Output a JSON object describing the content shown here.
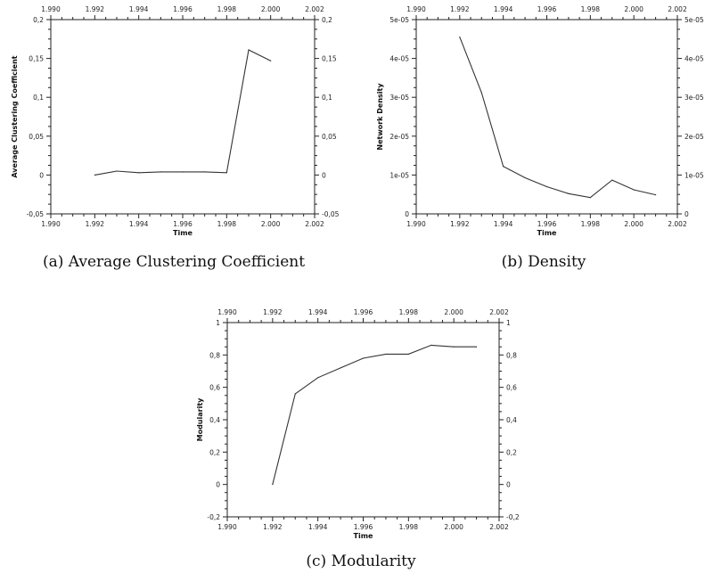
{
  "captions": {
    "a": "(a) Average Clustering Coefficient",
    "b": "(b) Density",
    "c": "(c) Modularity"
  },
  "chart_data": [
    {
      "type": "line",
      "panel": "a",
      "xlabel": "Time",
      "ylabel": "Average Clustering Coefficient",
      "xlim": [
        1.99,
        2.002
      ],
      "ylim": [
        -0.05,
        0.2
      ],
      "xticks": [
        "1.990",
        "1.992",
        "1.994",
        "1.996",
        "1.998",
        "2.000",
        "2.002"
      ],
      "yticks": [
        "-0,05",
        "0",
        "0,05",
        "0,1",
        "0,15",
        "0,2"
      ],
      "x": [
        1.992,
        1.993,
        1.994,
        1.995,
        1.996,
        1.997,
        1.998,
        1.999,
        2.0
      ],
      "y": [
        0.0,
        0.005,
        0.003,
        0.004,
        0.004,
        0.004,
        0.003,
        0.161,
        0.147
      ],
      "grid": false,
      "mirrored_axes": true,
      "line_color": "#333333"
    },
    {
      "type": "line",
      "panel": "b",
      "xlabel": "Time",
      "ylabel": "Network Density",
      "xlim": [
        1.99,
        2.002
      ],
      "ylim": [
        0,
        5e-05
      ],
      "xticks": [
        "1.990",
        "1.992",
        "1.994",
        "1.996",
        "1.998",
        "2.000",
        "2.002"
      ],
      "yticks": [
        "0",
        "1e-05",
        "2e-05",
        "3e-05",
        "4e-05",
        "5e-05"
      ],
      "x": [
        1.992,
        1.993,
        1.994,
        1.995,
        1.996,
        1.997,
        1.998,
        1.999,
        2.0,
        2.001
      ],
      "y": [
        4.55e-05,
        3.12e-05,
        1.22e-05,
        9.3e-06,
        7e-06,
        5.2e-06,
        4.2e-06,
        8.7e-06,
        6.2e-06,
        4.9e-06
      ],
      "grid": false,
      "mirrored_axes": true,
      "line_color": "#333333"
    },
    {
      "type": "line",
      "panel": "c",
      "xlabel": "Time",
      "ylabel": "Modularity",
      "xlim": [
        1.99,
        2.002
      ],
      "ylim": [
        -0.2,
        1
      ],
      "xticks": [
        "1.990",
        "1.992",
        "1.994",
        "1.996",
        "1.998",
        "2.000",
        "2.002"
      ],
      "yticks": [
        "-0,2",
        "0",
        "0,2",
        "0,4",
        "0,6",
        "0,8",
        "1"
      ],
      "x": [
        1.992,
        1.993,
        1.994,
        1.995,
        1.996,
        1.997,
        1.998,
        1.999,
        2.0,
        2.001
      ],
      "y": [
        0.0,
        0.56,
        0.66,
        0.72,
        0.78,
        0.805,
        0.805,
        0.86,
        0.85,
        0.85
      ],
      "grid": false,
      "mirrored_axes": true,
      "line_color": "#333333"
    }
  ]
}
